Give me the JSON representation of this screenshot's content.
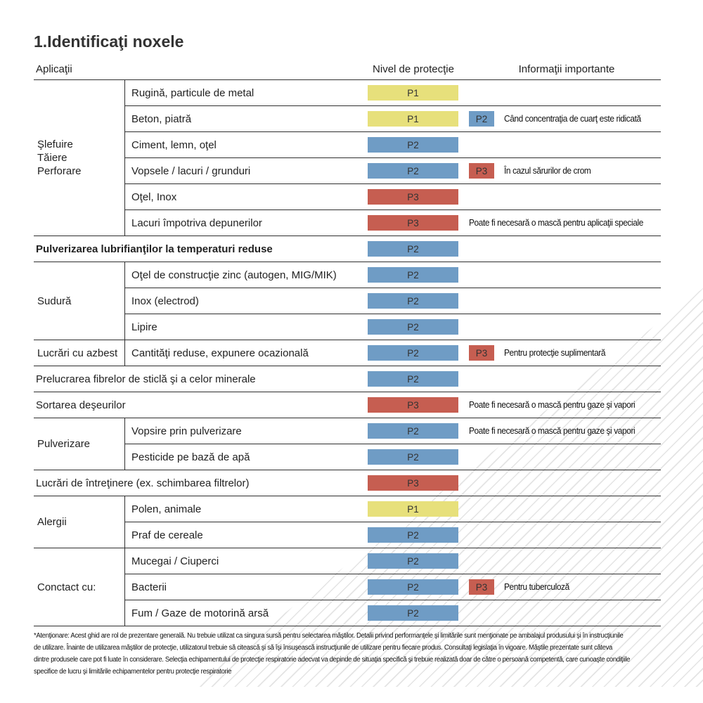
{
  "title": "1.Identificaţi noxele",
  "headers": {
    "applications": "Aplicaţii",
    "protection": "Nivel de protecţie",
    "info": "Informaţii importante"
  },
  "level_colors": {
    "P1": "#e7e07b",
    "P2": "#6f9cc5",
    "P3": "#c65e51"
  },
  "sections": [
    {
      "type": "group",
      "label": "Şlefuire\nTăiere\nPerforare",
      "rows": [
        {
          "app": "Rugină, particule de metal",
          "level": "P1"
        },
        {
          "app": "Beton, piatră",
          "level": "P1",
          "level2": "P2",
          "note": "Când concentraţia de cuarţ este ridicată"
        },
        {
          "app": "Ciment, lemn, oţel",
          "level": "P2"
        },
        {
          "app": "Vopsele / lacuri / grunduri",
          "level": "P2",
          "level2": "P3",
          "note": "În cazul sărurilor de crom"
        },
        {
          "app": "Oţel, Inox",
          "level": "P3"
        },
        {
          "app": "Lacuri împotriva depunerilor",
          "level": "P3",
          "note": "Poate fi necesară o mască pentru aplicaţii speciale"
        }
      ]
    },
    {
      "type": "full",
      "label": "Pulverizarea lubrifianţilor la temperaturi reduse",
      "bold": true,
      "level": "P2"
    },
    {
      "type": "group",
      "label": "Sudură",
      "rows": [
        {
          "app": "Oţel de construcţie zinc (autogen, MIG/MIK)",
          "level": "P2"
        },
        {
          "app": "Inox (electrod)",
          "level": "P2"
        },
        {
          "app": "Lipire",
          "level": "P2"
        }
      ]
    },
    {
      "type": "group",
      "label": "Lucrări cu azbest",
      "rows": [
        {
          "app": "Cantităţi reduse, expunere ocazională",
          "level": "P2",
          "level2": "P3",
          "note": "Pentru protecţie suplimentară"
        }
      ]
    },
    {
      "type": "full",
      "label": "Prelucrarea fibrelor de sticlă şi a celor minerale",
      "level": "P2"
    },
    {
      "type": "full",
      "label": "Sortarea deşeurilor",
      "level": "P3",
      "note": "Poate fi necesară o mască pentru gaze şi vapori"
    },
    {
      "type": "group",
      "label": "Pulverizare",
      "rows": [
        {
          "app": "Vopsire prin pulverizare",
          "level": "P2",
          "note": "Poate fi necesară o mască pentru gaze şi vapori"
        },
        {
          "app": "Pesticide pe bază de apă",
          "level": "P2"
        }
      ]
    },
    {
      "type": "full",
      "label": "Lucrări de întreţinere (ex. schimbarea filtrelor)",
      "level": "P3"
    },
    {
      "type": "group",
      "label": "Alergii",
      "rows": [
        {
          "app": "Polen, animale",
          "level": "P1"
        },
        {
          "app": "Praf de cereale",
          "level": "P2"
        }
      ]
    },
    {
      "type": "group",
      "label": "Conctact cu:",
      "rows": [
        {
          "app": "Mucegai / Ciuperci",
          "level": "P2"
        },
        {
          "app": "Bacterii",
          "level": "P2",
          "level2": "P3",
          "note": "Pentru tuberculoză"
        },
        {
          "app": "Fum / Gaze de motorină arsă",
          "level": "P2"
        }
      ]
    }
  ],
  "footnote": {
    "lines": [
      "*Atenţionare: Acest ghid are rol de prezentare generală. Nu trebuie utilizat ca singura sursă pentru selectarea măştilor. Detalii privind performanţele şi limitările sunt menţionate pe ambalajul produsului şi în instrucţiunile",
      "de utilizare. Înainte de utilizarea măştilor de protecţie, utilizatorul trebuie să citească şi să îşi însuşească instrucţiunile de utilizare pentru fiecare produs. Consultaţi legislaţia în vigoare. Măştile prezentate sunt câteva",
      "dintre produsele care pot fi luate în considerare. Selecţia echipamentului de protecţie respiratorie adecvat va depinde de situaţia specifică şi trebuie realizată doar de către o persoană competentă, care cunoaşte condiţiile",
      "specifice de lucru şi limitările echipamentelor pentru protecţie respiratorie"
    ]
  }
}
